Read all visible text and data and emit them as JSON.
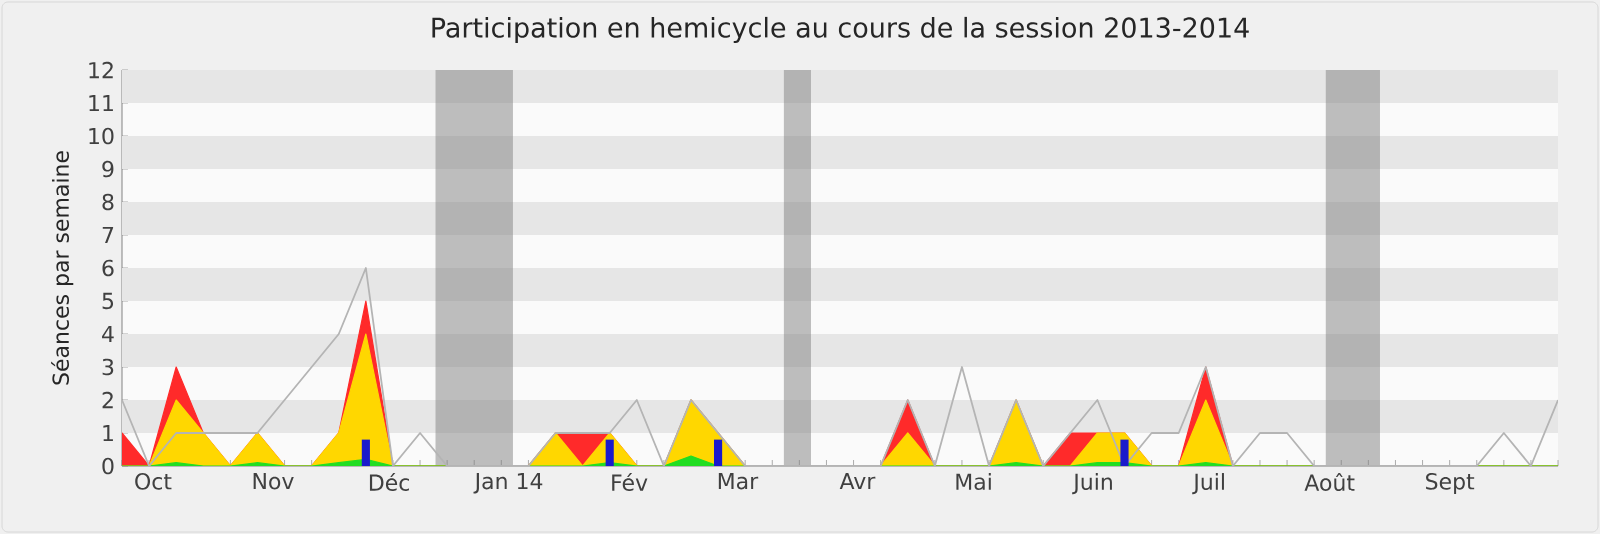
{
  "chart_data": {
    "type": "area",
    "title": "Participation en hemicycle au cours de la session 2013-2014",
    "ylabel": "Séances par semaine",
    "x": [
      "2013-09-23",
      "2013-09-30",
      "2013-10-07",
      "2013-10-14",
      "2013-10-21",
      "2013-10-28",
      "2013-11-04",
      "2013-11-11",
      "2013-11-18",
      "2013-11-25",
      "2013-12-02",
      "2013-12-09",
      "2013-12-16",
      "2013-12-23",
      "2013-12-30",
      "2014-01-06",
      "2014-01-13",
      "2014-01-20",
      "2014-01-27",
      "2014-02-03",
      "2014-02-10",
      "2014-02-17",
      "2014-02-24",
      "2014-03-03",
      "2014-03-10",
      "2014-03-17",
      "2014-03-24",
      "2014-03-31",
      "2014-04-07",
      "2014-04-14",
      "2014-04-21",
      "2014-04-28",
      "2014-05-05",
      "2014-05-12",
      "2014-05-19",
      "2014-05-26",
      "2014-06-02",
      "2014-06-09",
      "2014-06-16",
      "2014-06-23",
      "2014-06-30",
      "2014-07-07",
      "2014-07-14",
      "2014-07-21",
      "2014-07-28",
      "2014-08-04",
      "2014-08-11",
      "2014-08-18",
      "2014-08-25",
      "2014-09-01",
      "2014-09-08",
      "2014-09-15",
      "2014-09-22",
      "2014-09-29"
    ],
    "series": [
      {
        "type": "line",
        "color": "#b4b4b4",
        "values": [
          2,
          0,
          1,
          1,
          1,
          1,
          2,
          3,
          4,
          6,
          0,
          1,
          0,
          0,
          0,
          0,
          1,
          1,
          1,
          2,
          0,
          2,
          1,
          0,
          0,
          0,
          0,
          0,
          0,
          2,
          0,
          3,
          0,
          2,
          0,
          1,
          2,
          0,
          1,
          1,
          3,
          0,
          1,
          1,
          0,
          0,
          0,
          0,
          0,
          0,
          0,
          1,
          0,
          2
        ]
      },
      {
        "color": "#ff2a2a",
        "values": [
          1,
          0,
          3,
          1,
          0,
          1,
          0,
          0,
          1,
          5,
          0,
          0,
          0,
          0,
          0,
          0,
          1,
          1,
          1,
          0,
          0,
          2,
          1,
          0,
          0,
          0,
          0,
          0,
          0,
          2,
          0,
          0,
          0,
          2,
          0,
          1,
          1,
          1,
          0,
          0,
          3,
          0,
          0,
          0,
          0,
          0,
          0,
          0,
          0,
          0,
          0,
          0,
          0,
          0
        ]
      },
      {
        "color": "#ffd700",
        "values": [
          0,
          0,
          2,
          1,
          0,
          1,
          0,
          0,
          1,
          4,
          0,
          0,
          0,
          0,
          0,
          0,
          1,
          0,
          1,
          0,
          0,
          2,
          1,
          0,
          0,
          0,
          0,
          0,
          0,
          1,
          0,
          0,
          0,
          2,
          0,
          0,
          1,
          1,
          0,
          0,
          2,
          0,
          0,
          0,
          0,
          0,
          0,
          0,
          0,
          0,
          0,
          0,
          0,
          0
        ]
      },
      {
        "color": "#22dd22",
        "values": [
          0,
          0,
          0.1,
          0,
          0,
          0.1,
          0,
          0,
          0.1,
          0.2,
          0,
          0,
          0,
          0,
          0,
          0,
          0,
          0,
          0.1,
          0,
          0,
          0.3,
          0,
          0,
          0,
          0,
          0,
          0,
          0,
          0,
          0,
          0,
          0,
          0.1,
          0,
          0,
          0.1,
          0.1,
          0,
          0,
          0.1,
          0,
          0,
          0,
          0,
          0,
          0,
          0,
          0,
          0,
          0,
          0,
          0,
          0
        ]
      },
      {
        "type": "bar",
        "color": "#1a1acc",
        "values": [
          null,
          null,
          null,
          null,
          null,
          null,
          null,
          null,
          null,
          0.8,
          null,
          null,
          null,
          null,
          null,
          null,
          null,
          null,
          0.8,
          null,
          null,
          null,
          0.8,
          null,
          null,
          null,
          null,
          null,
          null,
          null,
          null,
          null,
          null,
          null,
          null,
          null,
          null,
          0.8,
          null,
          null,
          null,
          null,
          null,
          null,
          null,
          null,
          null,
          null,
          null,
          null,
          null,
          null,
          null,
          null
        ]
      }
    ],
    "bands": [
      {
        "axis": "x",
        "from": "2013-12-13",
        "to": "2014-01-02",
        "color": "#808080"
      },
      {
        "axis": "x",
        "from": "2014-03-13",
        "to": "2014-03-20",
        "color": "#808080"
      },
      {
        "axis": "x",
        "from": "2014-07-31",
        "to": "2014-08-14",
        "color": "#808080"
      }
    ],
    "xlim": [
      "2013-09-23",
      "2014-09-29"
    ],
    "ylim": [
      0,
      12
    ],
    "xticks": [
      {
        "value": "2013-09-23",
        "label": null
      },
      {
        "value": "2013-09-30",
        "label": null
      },
      {
        "value": "2013-10-07",
        "label": null
      },
      {
        "value": "2013-10-14",
        "label": null
      },
      {
        "value": "2013-10-21",
        "label": null
      },
      {
        "value": "2013-10-28",
        "label": null
      },
      {
        "value": "2013-11-04",
        "label": null
      },
      {
        "value": "2013-11-11",
        "label": null
      },
      {
        "value": "2013-11-18",
        "label": null
      },
      {
        "value": "2013-11-25",
        "label": null
      },
      {
        "value": "2013-12-02",
        "label": null
      },
      {
        "value": "2013-12-09",
        "label": null
      },
      {
        "value": "2013-12-16",
        "label": null
      },
      {
        "value": "2013-12-23",
        "label": null
      },
      {
        "value": "2013-12-30",
        "label": null
      },
      {
        "value": "2014-01-06",
        "label": null
      },
      {
        "value": "2014-01-13",
        "label": null
      },
      {
        "value": "2014-01-20",
        "label": null
      },
      {
        "value": "2014-01-27",
        "label": null
      },
      {
        "value": "2014-02-03",
        "label": null
      },
      {
        "value": "2014-02-10",
        "label": null
      },
      {
        "value": "2014-02-17",
        "label": null
      },
      {
        "value": "2014-02-24",
        "label": null
      },
      {
        "value": "2014-03-03",
        "label": null
      },
      {
        "value": "2014-03-10",
        "label": null
      },
      {
        "value": "2014-03-17",
        "label": null
      },
      {
        "value": "2014-03-24",
        "label": null
      },
      {
        "value": "2014-03-31",
        "label": null
      },
      {
        "value": "2014-04-07",
        "label": null
      },
      {
        "value": "2014-04-14",
        "label": null
      },
      {
        "value": "2014-04-21",
        "label": null
      },
      {
        "value": "2014-04-28",
        "label": null
      },
      {
        "value": "2014-05-05",
        "label": null
      },
      {
        "value": "2014-05-12",
        "label": null
      },
      {
        "value": "2014-05-19",
        "label": null
      },
      {
        "value": "2014-05-26",
        "label": null
      },
      {
        "value": "2014-06-02",
        "label": null
      },
      {
        "value": "2014-06-09",
        "label": null
      },
      {
        "value": "2014-06-16",
        "label": null
      },
      {
        "value": "2014-06-23",
        "label": null
      },
      {
        "value": "2014-06-30",
        "label": null
      },
      {
        "value": "2014-07-07",
        "label": null
      },
      {
        "value": "2014-07-14",
        "label": null
      },
      {
        "value": "2014-07-21",
        "label": null
      },
      {
        "value": "2014-07-28",
        "label": null
      },
      {
        "value": "2014-08-04",
        "label": null
      },
      {
        "value": "2014-08-11",
        "label": null
      },
      {
        "value": "2014-08-18",
        "label": null
      },
      {
        "value": "2014-08-25",
        "label": null
      },
      {
        "value": "2014-09-01",
        "label": null
      },
      {
        "value": "2014-09-08",
        "label": null
      },
      {
        "value": "2014-09-15",
        "label": null
      },
      {
        "value": "2014-09-22",
        "label": null
      },
      {
        "value": "2014-09-29",
        "label": null
      },
      {
        "value": "2013-10-01",
        "label": "Oct"
      },
      {
        "value": "2013-11-01",
        "label": "Nov"
      },
      {
        "value": "2013-12-01",
        "label": "Déc"
      },
      {
        "value": "2014-01-01",
        "label": "Jan 14"
      },
      {
        "value": "2014-02-01",
        "label": "Fév"
      },
      {
        "value": "2014-03-01",
        "label": "Mar"
      },
      {
        "value": "2014-04-01",
        "label": "Avr"
      },
      {
        "value": "2014-05-01",
        "label": "Mai"
      },
      {
        "value": "2014-06-01",
        "label": "Juin"
      },
      {
        "value": "2014-07-01",
        "label": "Juil"
      },
      {
        "value": "2014-08-01",
        "label": "Août"
      },
      {
        "value": "2014-09-01",
        "label": "Sept"
      }
    ],
    "yticks": [
      0,
      1,
      2,
      3,
      4,
      5,
      6,
      7,
      8,
      9,
      10,
      11,
      12
    ],
    "marker": "none",
    "line_style": "solid"
  }
}
